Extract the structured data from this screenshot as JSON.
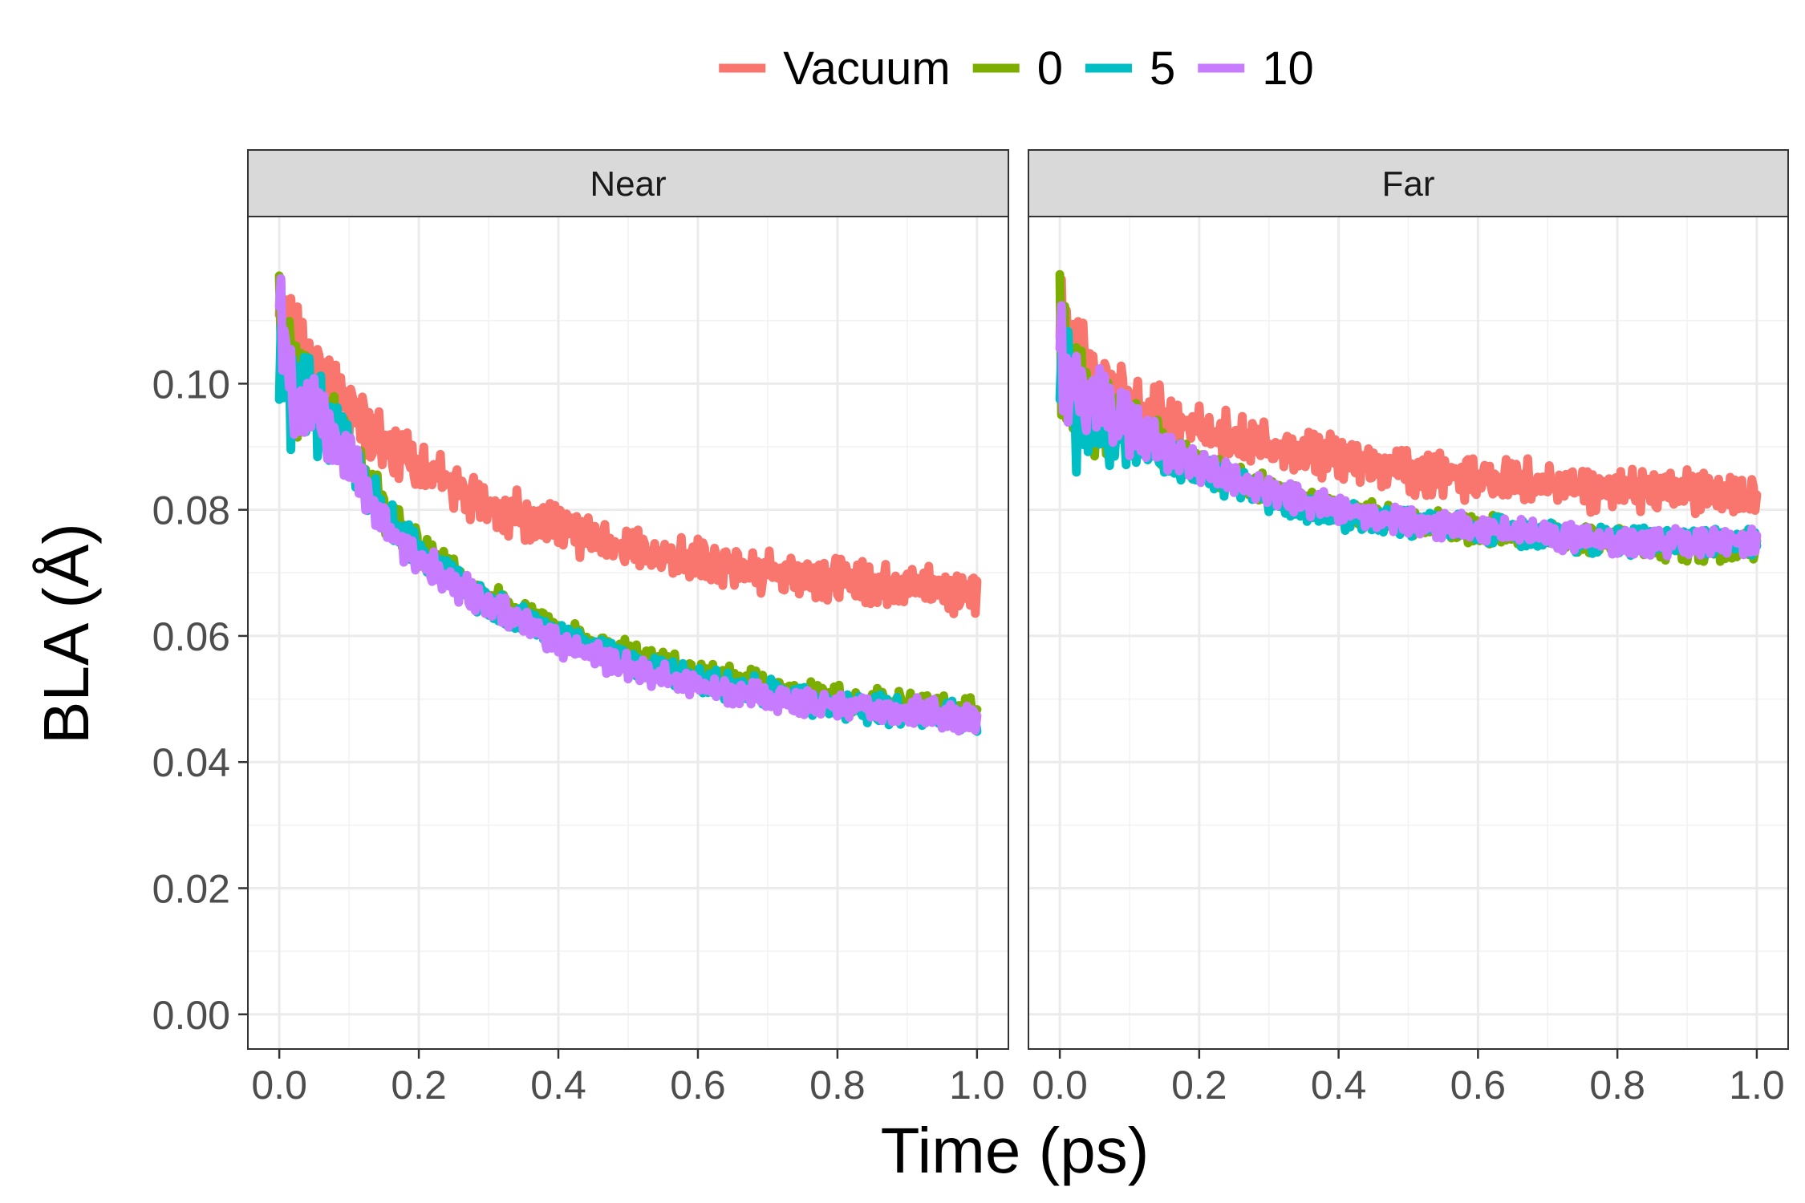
{
  "chart_data": {
    "type": "line",
    "xlabel": "Time (ps)",
    "ylabel": "BLA (Å)",
    "xlim": [
      -0.045,
      1.045
    ],
    "ylim": [
      -0.0055,
      0.1265
    ],
    "x_ticks": [
      0.0,
      0.2,
      0.4,
      0.6,
      0.8,
      1.0
    ],
    "x_tick_labels": [
      "0.0",
      "0.2",
      "0.4",
      "0.6",
      "0.8",
      "1.0"
    ],
    "y_ticks": [
      0.0,
      0.02,
      0.04,
      0.06,
      0.08,
      0.1
    ],
    "y_tick_labels": [
      "0.00",
      "0.02",
      "0.04",
      "0.06",
      "0.08",
      "0.10"
    ],
    "grid": true,
    "legend": {
      "position": "top",
      "entries": [
        {
          "label": "Vacuum",
          "color": "#F8766D"
        },
        {
          "label": "0",
          "color": "#7CAE00"
        },
        {
          "label": "5",
          "color": "#00BFC4"
        },
        {
          "label": "10",
          "color": "#C77CFF"
        }
      ]
    },
    "panels": [
      {
        "label": "Near",
        "series": [
          {
            "name": "Vacuum",
            "color": "#F8766D",
            "x": [
              0.0,
              0.02,
              0.05,
              0.1,
              0.15,
              0.2,
              0.3,
              0.4,
              0.5,
              0.6,
              0.7,
              0.8,
              0.9,
              1.0
            ],
            "y": [
              0.111,
              0.106,
              0.104,
              0.097,
              0.09,
              0.087,
              0.081,
              0.077,
              0.074,
              0.072,
              0.07,
              0.069,
              0.068,
              0.067
            ]
          },
          {
            "name": "0",
            "color": "#7CAE00",
            "x": [
              0.0,
              0.02,
              0.05,
              0.1,
              0.15,
              0.2,
              0.3,
              0.4,
              0.5,
              0.6,
              0.7,
              0.8,
              0.9,
              1.0
            ],
            "y": [
              0.108,
              0.1,
              0.098,
              0.09,
              0.08,
              0.074,
              0.066,
              0.061,
              0.057,
              0.054,
              0.052,
              0.05,
              0.049,
              0.048
            ]
          },
          {
            "name": "5",
            "color": "#00BFC4",
            "x": [
              0.0,
              0.02,
              0.05,
              0.1,
              0.15,
              0.2,
              0.3,
              0.4,
              0.5,
              0.6,
              0.7,
              0.8,
              0.9,
              1.0
            ],
            "y": [
              0.109,
              0.097,
              0.096,
              0.089,
              0.079,
              0.073,
              0.065,
              0.06,
              0.056,
              0.053,
              0.051,
              0.049,
              0.048,
              0.047
            ]
          },
          {
            "name": "10",
            "color": "#C77CFF",
            "x": [
              0.0,
              0.02,
              0.05,
              0.1,
              0.15,
              0.2,
              0.3,
              0.4,
              0.5,
              0.6,
              0.7,
              0.8,
              0.9,
              1.0
            ],
            "y": [
              0.109,
              0.098,
              0.096,
              0.088,
              0.078,
              0.072,
              0.065,
              0.059,
              0.055,
              0.052,
              0.05,
              0.049,
              0.048,
              0.047
            ]
          }
        ]
      },
      {
        "label": "Far",
        "series": [
          {
            "name": "Vacuum",
            "color": "#F8766D",
            "x": [
              0.0,
              0.02,
              0.05,
              0.1,
              0.15,
              0.2,
              0.3,
              0.4,
              0.5,
              0.6,
              0.7,
              0.8,
              0.9,
              1.0
            ],
            "y": [
              0.109,
              0.104,
              0.101,
              0.097,
              0.095,
              0.093,
              0.09,
              0.088,
              0.086,
              0.085,
              0.084,
              0.083,
              0.083,
              0.082
            ]
          },
          {
            "name": "0",
            "color": "#7CAE00",
            "x": [
              0.0,
              0.02,
              0.05,
              0.1,
              0.15,
              0.2,
              0.3,
              0.4,
              0.5,
              0.6,
              0.7,
              0.8,
              0.9,
              1.0
            ],
            "y": [
              0.106,
              0.098,
              0.096,
              0.093,
              0.09,
              0.087,
              0.083,
              0.08,
              0.078,
              0.077,
              0.076,
              0.075,
              0.074,
              0.074
            ]
          },
          {
            "name": "5",
            "color": "#00BFC4",
            "x": [
              0.0,
              0.02,
              0.05,
              0.1,
              0.15,
              0.2,
              0.3,
              0.4,
              0.5,
              0.6,
              0.7,
              0.8,
              0.9,
              1.0
            ],
            "y": [
              0.109,
              0.095,
              0.093,
              0.091,
              0.088,
              0.086,
              0.082,
              0.079,
              0.078,
              0.077,
              0.076,
              0.075,
              0.075,
              0.075
            ]
          },
          {
            "name": "10",
            "color": "#C77CFF",
            "x": [
              0.0,
              0.02,
              0.05,
              0.1,
              0.15,
              0.2,
              0.3,
              0.4,
              0.5,
              0.6,
              0.7,
              0.8,
              0.9,
              1.0
            ],
            "y": [
              0.106,
              0.099,
              0.097,
              0.093,
              0.09,
              0.087,
              0.083,
              0.08,
              0.078,
              0.077,
              0.076,
              0.075,
              0.075,
              0.075
            ]
          }
        ]
      }
    ]
  }
}
